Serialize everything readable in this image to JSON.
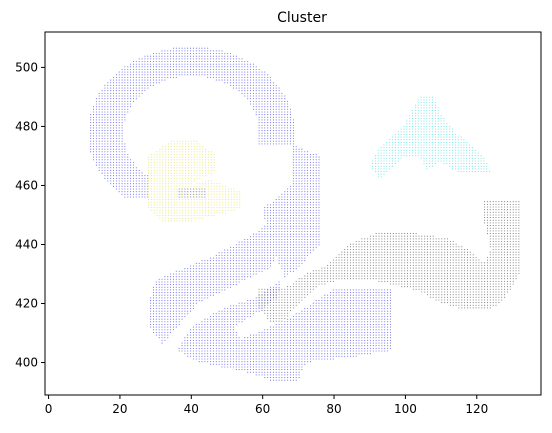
{
  "chart_data": {
    "type": "scatter",
    "title": "Cluster",
    "xlabel": "",
    "ylabel": "",
    "xlim": [
      -1,
      138
    ],
    "ylim": [
      389,
      512
    ],
    "xticks": [
      0,
      20,
      40,
      60,
      80,
      100,
      120
    ],
    "yticks": [
      400,
      420,
      440,
      460,
      480,
      500
    ],
    "grid": false,
    "legend": "none",
    "point_spacing": [
      0.8,
      0.9
    ],
    "series": [
      {
        "color": "#6a6aee",
        "regions": [
          {
            "type": "ring",
            "center": [
              40,
              478
            ],
            "r_inner": 19,
            "r_outer": 29,
            "y_min": 456,
            "exclude_x_gap": [
              28,
              36
            ],
            "exclude_y_gap": [
              456,
              470
            ]
          },
          {
            "type": "poly",
            "points": [
              [
                68,
                474
              ],
              [
                76,
                470
              ],
              [
                76,
                440
              ],
              [
                70,
                432
              ],
              [
                58,
                422
              ],
              [
                48,
                418
              ],
              [
                40,
                412
              ],
              [
                36,
                404
              ],
              [
                42,
                400
              ],
              [
                55,
                397
              ],
              [
                62,
                394
              ],
              [
                70,
                394
              ],
              [
                72,
                400
              ],
              [
                86,
                402
              ],
              [
                96,
                404
              ],
              [
                96,
                425
              ],
              [
                80,
                425
              ],
              [
                66,
                414
              ],
              [
                58,
                410
              ],
              [
                54,
                408
              ],
              [
                52,
                412
              ],
              [
                60,
                418
              ],
              [
                64,
                422
              ],
              [
                66,
                430
              ],
              [
                62,
                440
              ],
              [
                60,
                452
              ],
              [
                68,
                460
              ]
            ]
          },
          {
            "type": "poly",
            "points": [
              [
                30,
                428
              ],
              [
                38,
                432
              ],
              [
                46,
                436
              ],
              [
                52,
                440
              ],
              [
                58,
                444
              ],
              [
                62,
                448
              ],
              [
                66,
                440
              ],
              [
                62,
                432
              ],
              [
                52,
                426
              ],
              [
                42,
                420
              ],
              [
                36,
                412
              ],
              [
                32,
                406
              ],
              [
                28,
                412
              ],
              [
                28,
                420
              ]
            ]
          }
        ]
      },
      {
        "color": "#e6e67a",
        "regions": [
          {
            "type": "poly",
            "points": [
              [
                28,
                470
              ],
              [
                34,
                475
              ],
              [
                42,
                475
              ],
              [
                47,
                470
              ],
              [
                47,
                465
              ],
              [
                42,
                462
              ],
              [
                40,
                460
              ],
              [
                45,
                462
              ],
              [
                54,
                458
              ],
              [
                54,
                452
              ],
              [
                48,
                450
              ],
              [
                40,
                448
              ],
              [
                32,
                448
              ],
              [
                28,
                452
              ]
            ]
          }
        ]
      },
      {
        "color": "#66e6e6",
        "regions": [
          {
            "type": "poly",
            "points": [
              [
                90,
                466
              ],
              [
                92,
                472
              ],
              [
                96,
                476
              ],
              [
                100,
                481
              ],
              [
                104,
                490
              ],
              [
                108,
                490
              ],
              [
                110,
                484
              ],
              [
                114,
                478
              ],
              [
                118,
                474
              ],
              [
                122,
                470
              ],
              [
                124,
                464
              ],
              [
                115,
                464
              ],
              [
                110,
                468
              ],
              [
                106,
                465
              ],
              [
                104,
                470
              ],
              [
                100,
                470
              ],
              [
                96,
                466
              ],
              [
                93,
                462
              ]
            ]
          }
        ]
      },
      {
        "color": "#7a7a7a",
        "regions": [
          {
            "type": "poly",
            "points": [
              [
                59,
                425
              ],
              [
                66,
                425
              ],
              [
                72,
                430
              ],
              [
                78,
                433
              ],
              [
                84,
                440
              ],
              [
                92,
                444
              ],
              [
                102,
                444
              ],
              [
                112,
                442
              ],
              [
                118,
                438
              ],
              [
                122,
                434
              ],
              [
                124,
                438
              ],
              [
                122,
                448
              ],
              [
                122,
                455
              ],
              [
                132,
                455
              ],
              [
                132,
                430
              ],
              [
                128,
                422
              ],
              [
                124,
                418
              ],
              [
                116,
                418
              ],
              [
                110,
                420
              ],
              [
                104,
                424
              ],
              [
                98,
                426
              ],
              [
                90,
                428
              ],
              [
                82,
                428
              ],
              [
                76,
                426
              ],
              [
                70,
                420
              ],
              [
                66,
                414
              ],
              [
                62,
                414
              ],
              [
                59,
                418
              ]
            ]
          }
        ]
      }
    ]
  }
}
